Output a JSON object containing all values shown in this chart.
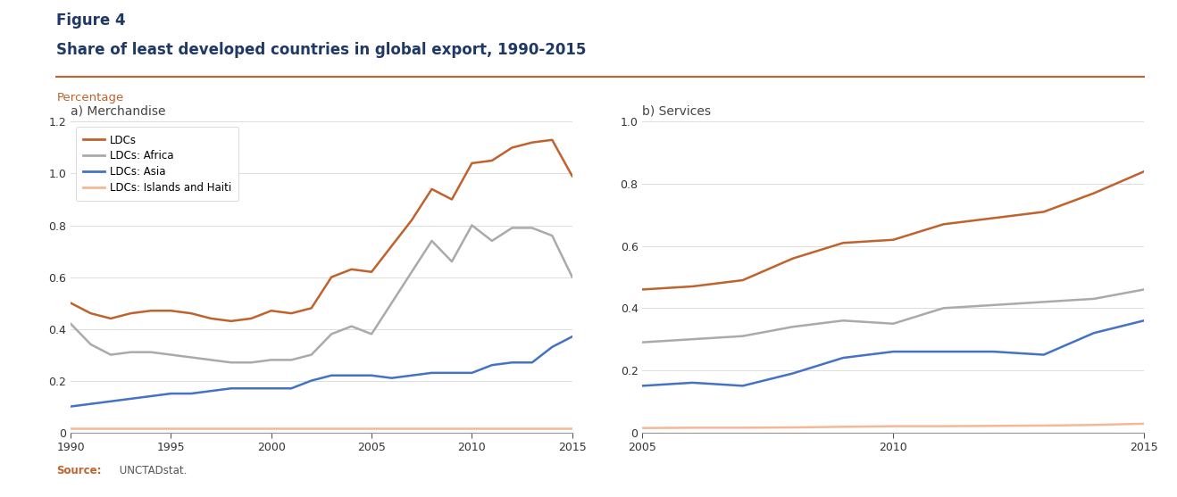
{
  "title_line1": "Figure 4",
  "title_line2": "Share of least developed countries in global export, 1990-2015",
  "ylabel_label": "Percentage",
  "source_bold": "Source:",
  "source_rest": " UNCTADstat.",
  "panel_a_title": "a) Merchandise",
  "panel_a_years": [
    1990,
    1991,
    1992,
    1993,
    1994,
    1995,
    1996,
    1997,
    1998,
    1999,
    2000,
    2001,
    2002,
    2003,
    2004,
    2005,
    2006,
    2007,
    2008,
    2009,
    2010,
    2011,
    2012,
    2013,
    2014,
    2015
  ],
  "panel_a_ldcs": [
    0.5,
    0.46,
    0.44,
    0.46,
    0.47,
    0.47,
    0.46,
    0.44,
    0.43,
    0.44,
    0.47,
    0.46,
    0.48,
    0.6,
    0.63,
    0.62,
    0.72,
    0.82,
    0.94,
    0.9,
    1.04,
    1.05,
    1.1,
    1.12,
    1.13,
    0.99
  ],
  "panel_a_africa": [
    0.42,
    0.34,
    0.3,
    0.31,
    0.31,
    0.3,
    0.29,
    0.28,
    0.27,
    0.27,
    0.28,
    0.28,
    0.3,
    0.38,
    0.41,
    0.38,
    0.5,
    0.62,
    0.74,
    0.66,
    0.8,
    0.74,
    0.79,
    0.79,
    0.76,
    0.6
  ],
  "panel_a_asia": [
    0.1,
    0.11,
    0.12,
    0.13,
    0.14,
    0.15,
    0.15,
    0.16,
    0.17,
    0.17,
    0.17,
    0.17,
    0.2,
    0.22,
    0.22,
    0.22,
    0.21,
    0.22,
    0.23,
    0.23,
    0.23,
    0.26,
    0.27,
    0.27,
    0.33,
    0.37
  ],
  "panel_a_islands": [
    0.015,
    0.015,
    0.015,
    0.015,
    0.015,
    0.015,
    0.015,
    0.015,
    0.015,
    0.015,
    0.015,
    0.015,
    0.015,
    0.015,
    0.015,
    0.015,
    0.015,
    0.015,
    0.015,
    0.015,
    0.015,
    0.015,
    0.015,
    0.015,
    0.015,
    0.015
  ],
  "panel_a_ylim": [
    0,
    1.2
  ],
  "panel_a_yticks": [
    0,
    0.2,
    0.4,
    0.6,
    0.8,
    1.0,
    1.2
  ],
  "panel_a_xlim": [
    1990,
    2015
  ],
  "panel_a_xticks": [
    1990,
    1995,
    2000,
    2005,
    2010,
    2015
  ],
  "panel_b_title": "b) Services",
  "panel_b_years": [
    2005,
    2006,
    2007,
    2008,
    2009,
    2010,
    2011,
    2012,
    2013,
    2014,
    2015
  ],
  "panel_b_ldcs": [
    0.46,
    0.47,
    0.49,
    0.56,
    0.61,
    0.62,
    0.67,
    0.69,
    0.71,
    0.77,
    0.84
  ],
  "panel_b_africa": [
    0.29,
    0.3,
    0.31,
    0.34,
    0.36,
    0.35,
    0.4,
    0.41,
    0.42,
    0.43,
    0.46
  ],
  "panel_b_asia": [
    0.15,
    0.16,
    0.15,
    0.19,
    0.24,
    0.26,
    0.26,
    0.26,
    0.25,
    0.32,
    0.36
  ],
  "panel_b_islands": [
    0.014,
    0.015,
    0.015,
    0.016,
    0.018,
    0.02,
    0.02,
    0.021,
    0.022,
    0.024,
    0.028
  ],
  "panel_b_ylim": [
    0,
    1.0
  ],
  "panel_b_yticks": [
    0,
    0.2,
    0.4,
    0.6,
    0.8,
    1.0
  ],
  "panel_b_xlim": [
    2005,
    2015
  ],
  "panel_b_xticks": [
    2005,
    2010,
    2015
  ],
  "color_ldcs": "#C0622D",
  "color_africa": "#AAAAAA",
  "color_asia": "#4472C4",
  "color_islands": "#F4B896",
  "line_width": 1.8,
  "background_color": "#FFFFFF",
  "title_color": "#1F3864",
  "ylabel_color": "#C0622D",
  "source_color": "#C0622D",
  "source_rest_color": "#555555",
  "rule_color": "#C0622D"
}
